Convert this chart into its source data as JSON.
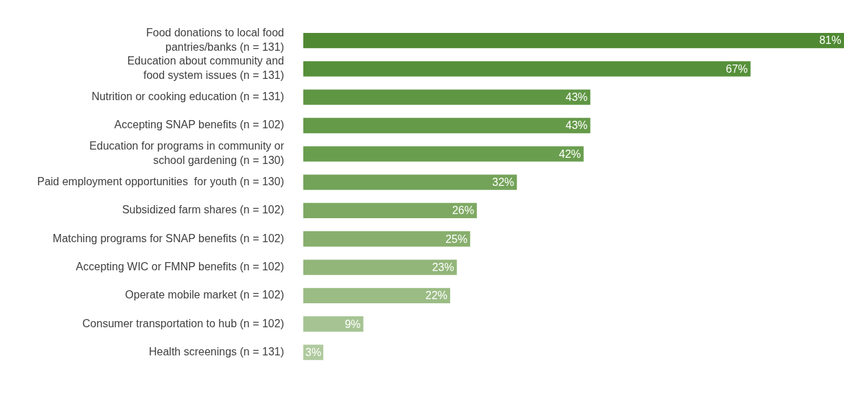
{
  "chart_data": {
    "type": "bar",
    "orientation": "horizontal",
    "legend": false,
    "categories": [
      "Food donations to local food\npantries/banks (n = 131)",
      "Education about community and\nfood system issues (n = 131)",
      "Nutrition or cooking education (n = 131)",
      "Accepting SNAP benefits (n = 102)",
      "Education for programs in community or\nschool gardening (n = 130)",
      "Paid employment opportunities  for youth (n = 130)",
      "Subsidized farm shares (n = 102)",
      "Matching programs for SNAP benefits (n = 102)",
      "Accepting WIC or FMNP benefits (n = 102)",
      "Operate mobile market (n = 102)",
      "Consumer transportation to hub (n = 102)",
      "Health screenings (n = 131)"
    ],
    "values": [
      81,
      67,
      43,
      43,
      42,
      32,
      26,
      25,
      23,
      22,
      9,
      3
    ],
    "value_labels": [
      "81%",
      "67%",
      "43%",
      "43%",
      "42%",
      "32%",
      "26%",
      "25%",
      "23%",
      "22%",
      "9%",
      "3%"
    ],
    "colors": [
      "#4f8a33",
      "#56903a",
      "#5f9643",
      "#659a49",
      "#6a9e4f",
      "#73a358",
      "#7ea963",
      "#88af6d",
      "#92b679",
      "#9bbc85",
      "#a6c493",
      "#b0ca9f"
    ]
  }
}
